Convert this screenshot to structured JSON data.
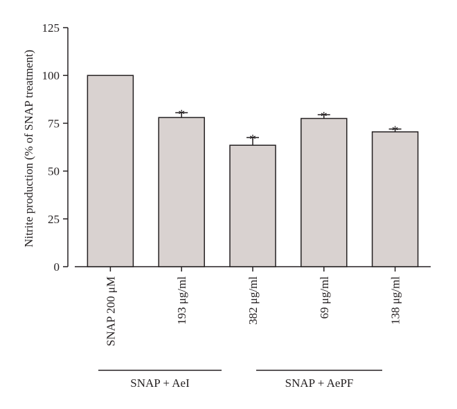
{
  "chart_data": {
    "type": "bar",
    "ylabel": "Nitrite production (% of SNAP treatment)",
    "ylim": [
      0,
      125
    ],
    "yticks": [
      0,
      25,
      50,
      75,
      100,
      125
    ],
    "bar_color": "#d9d2d0",
    "edge_color": "#231f20",
    "bars": [
      {
        "label": "SNAP 200 μM",
        "value": 100,
        "error": null,
        "sig": ""
      },
      {
        "label": "193 μg/ml",
        "value": 78,
        "error": 2.5,
        "sig": "*"
      },
      {
        "label": "382 μg/ml",
        "value": 63.5,
        "error": 4,
        "sig": "*"
      },
      {
        "label": "69 μg/ml",
        "value": 77.5,
        "error": 2,
        "sig": "*"
      },
      {
        "label": "138 μg/ml",
        "value": 70.5,
        "error": 1.5,
        "sig": "*"
      }
    ],
    "groups": [
      {
        "label": "SNAP + AeI",
        "bars": [
          0,
          1
        ]
      },
      {
        "label": "SNAP + AePF",
        "bars": [
          2,
          3,
          4
        ]
      }
    ]
  }
}
